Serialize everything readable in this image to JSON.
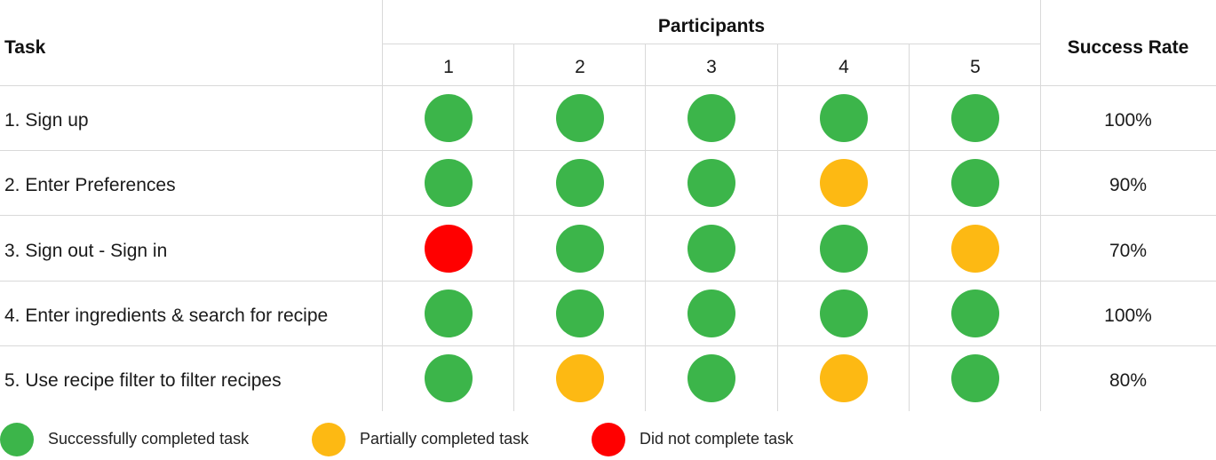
{
  "chart_data": {
    "type": "table",
    "headers": {
      "task": "Task",
      "participants": "Participants",
      "success_rate": "Success Rate"
    },
    "participants": [
      "1",
      "2",
      "3",
      "4",
      "5"
    ],
    "rows": [
      {
        "task": "1. Sign up",
        "results": [
          "success",
          "success",
          "success",
          "success",
          "success"
        ],
        "success_rate": "100%"
      },
      {
        "task": "2. Enter Preferences",
        "results": [
          "success",
          "success",
          "success",
          "partial",
          "success"
        ],
        "success_rate": "90%"
      },
      {
        "task": "3. Sign out - Sign in",
        "results": [
          "fail",
          "success",
          "success",
          "success",
          "partial"
        ],
        "success_rate": "70%"
      },
      {
        "task": "4. Enter ingredients & search for recipe",
        "results": [
          "success",
          "success",
          "success",
          "success",
          "success"
        ],
        "success_rate": "100%"
      },
      {
        "task": "5. Use recipe filter to filter recipes",
        "results": [
          "success",
          "partial",
          "success",
          "partial",
          "success"
        ],
        "success_rate": "80%"
      }
    ],
    "legend": [
      {
        "key": "success",
        "label": "Successfully completed task",
        "color": "#3cb54a"
      },
      {
        "key": "partial",
        "label": "Partially completed task",
        "color": "#fdb913"
      },
      {
        "key": "fail",
        "label": "Did not complete task",
        "color": "#ff0000"
      }
    ]
  }
}
